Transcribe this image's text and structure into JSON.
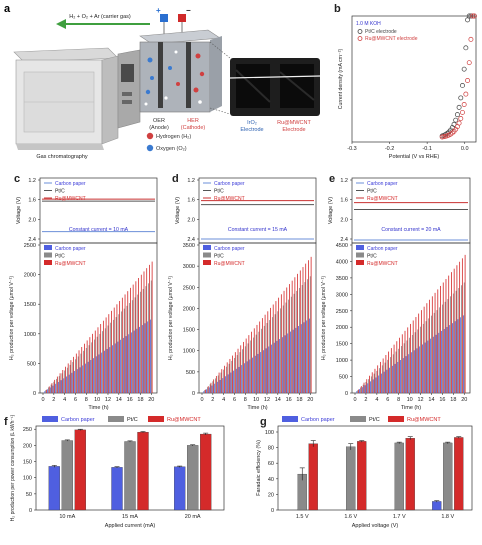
{
  "colors": {
    "carbon": "#4f5fe0",
    "ptc": "#8a8a8a",
    "ru": "#d42a2a",
    "carbon_line": "#6b8fd8",
    "ptc_line": "#555555",
    "ru_line": "#c83030",
    "legend_blue": "#3c3cd8"
  },
  "panel_a": {
    "letter": "a",
    "gas_label": "H₂ + O₂ + Ar (carrier gas)",
    "gc_label": "Gas chromatography",
    "oer_label": "OER",
    "oer_sub": "(Anode)",
    "her_label": "HER",
    "her_sub": "(Cathode)",
    "hydrogen_label": "Hydrogen (H₂)",
    "oxygen_label": "Oxygen (O₂)",
    "iro2_label": "IrO₂",
    "iro2_sub": "Electrode",
    "ru_label": "Ru@MWCNT",
    "ru_sub": "Electrode",
    "plus": "+",
    "minus": "−"
  },
  "chart_data": [
    {
      "panel": "b",
      "type": "line",
      "legend_title": "1.0 M KOH",
      "xlabel": "Potential (V vs RHE)",
      "ylabel": "Current density (mA cm⁻²)",
      "xlim": [
        -0.3,
        0.03
      ],
      "xticks": [
        "-0.3",
        "-0.2",
        "-0.1",
        "0.0"
      ],
      "series": [
        {
          "name": "Pt/C electrode",
          "color": "#444444",
          "onset": 0.005
        },
        {
          "name": "Ru@MWCNT electrode",
          "color": "#d04040",
          "onset": 0.017
        }
      ]
    },
    {
      "panel": "c",
      "type": "bar",
      "current_label": "Constant current = 10 mA",
      "voltage_ylabel": "Voltage (V)",
      "voltage_ticks": [
        "1.2",
        "1.6",
        "2.0",
        "2.4"
      ],
      "voltage_series": [
        {
          "name": "Carbon paper",
          "value": 2.25
        },
        {
          "name": "Pt/C",
          "value": 1.63
        },
        {
          "name": "Ru@MWCNT",
          "value": 1.59
        }
      ],
      "ylabel": "H₂ production per voltage (µmol V⁻¹)",
      "xlabel": "Time (h)",
      "ylim": [
        0,
        2500
      ],
      "yticks": [
        "0",
        "500",
        "1000",
        "1500",
        "2000",
        "2500"
      ],
      "xticks": [
        "0",
        "2",
        "4",
        "6",
        "8",
        "10",
        "12",
        "14",
        "16",
        "18",
        "20"
      ],
      "series": [
        {
          "name": "Carbon paper",
          "rate": 62
        },
        {
          "name": "Pt/C",
          "rate": 95
        },
        {
          "name": "Ru@MWCNT",
          "rate": 111
        }
      ]
    },
    {
      "panel": "d",
      "type": "bar",
      "current_label": "Constant current = 15 mA",
      "voltage_ylabel": "Voltage (V)",
      "voltage_ticks": [
        "1.2",
        "1.6",
        "2.0",
        "2.4"
      ],
      "voltage_series": [
        {
          "name": "Carbon paper",
          "value": 2.4
        },
        {
          "name": "Pt/C",
          "value": 1.7
        },
        {
          "name": "Ru@MWCNT",
          "value": 1.62
        }
      ],
      "ylabel": "H₂ production per voltage (µmol V⁻¹)",
      "xlabel": "Time (h)",
      "ylim": [
        0,
        3500
      ],
      "yticks": [
        "0",
        "500",
        "1000",
        "1500",
        "2000",
        "2500",
        "3000",
        "3500"
      ],
      "xticks": [
        "0",
        "2",
        "4",
        "6",
        "8",
        "10",
        "12",
        "14",
        "16",
        "18",
        "20"
      ],
      "series": [
        {
          "name": "Carbon paper",
          "rate": 88
        },
        {
          "name": "Pt/C",
          "rate": 138
        },
        {
          "name": "Ru@MWCNT",
          "rate": 161
        }
      ]
    },
    {
      "panel": "e",
      "type": "bar",
      "current_label": "Constant current = 20 mA",
      "voltage_ylabel": "Voltage (V)",
      "voltage_ticks": [
        "1.2",
        "1.6",
        "2.0",
        "2.4"
      ],
      "voltage_series": [
        {
          "name": "Carbon paper",
          "value": 2.42
        },
        {
          "name": "Pt/C",
          "value": 1.8
        },
        {
          "name": "Ru@MWCNT",
          "value": 1.66
        }
      ],
      "ylabel": "H₂ production per voltage (µmol V⁻¹)",
      "xlabel": "Time (h)",
      "ylim": [
        0,
        4500
      ],
      "yticks": [
        "0",
        "500",
        "1000",
        "1500",
        "2000",
        "2500",
        "3000",
        "3500",
        "4000",
        "4500"
      ],
      "xticks": [
        "0",
        "2",
        "4",
        "6",
        "8",
        "10",
        "12",
        "14",
        "16",
        "18",
        "20"
      ],
      "series": [
        {
          "name": "Carbon paper",
          "rate": 118
        },
        {
          "name": "Pt/C",
          "rate": 168
        },
        {
          "name": "Ru@MWCNT",
          "rate": 210
        }
      ]
    },
    {
      "panel": "f",
      "type": "bar",
      "categories": [
        "10 mA",
        "15 mA",
        "20 mA"
      ],
      "xlabel": "Applied current (mA)",
      "ylabel": "H₂ production per power consumption (L kWh⁻¹)",
      "ylim": [
        0,
        260
      ],
      "yticks": [
        "0",
        "50",
        "100",
        "150",
        "200",
        "250"
      ],
      "series": [
        {
          "name": "Carbon paper",
          "values": [
            135,
            132,
            134
          ],
          "errors": [
            3,
            2,
            2
          ]
        },
        {
          "name": "Pt/C",
          "values": [
            215,
            212,
            200
          ],
          "errors": [
            2,
            2,
            2
          ]
        },
        {
          "name": "Ru@MWCNT",
          "values": [
            248,
            241,
            235
          ],
          "errors": [
            2,
            2,
            3
          ]
        }
      ]
    },
    {
      "panel": "g",
      "type": "bar",
      "categories": [
        "1.5 V",
        "1.6 V",
        "1.7 V",
        "1.8 V"
      ],
      "xlabel": "Applied voltage (V)",
      "ylabel": "Faradaic efficiency (%)",
      "ylim": [
        0,
        100
      ],
      "yticks": [
        "0",
        "20",
        "40",
        "60",
        "80",
        "100"
      ],
      "series": [
        {
          "name": "Carbon paper",
          "values": [
            null,
            null,
            null,
            11
          ],
          "errors": [
            0,
            0,
            0,
            1
          ]
        },
        {
          "name": "Pt/C",
          "values": [
            46,
            81,
            86,
            86
          ],
          "errors": [
            8,
            4,
            1,
            1
          ]
        },
        {
          "name": "Ru@MWCNT",
          "values": [
            85,
            88,
            92,
            93
          ],
          "errors": [
            4,
            1,
            2,
            1
          ]
        }
      ]
    }
  ]
}
